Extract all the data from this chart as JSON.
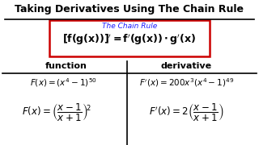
{
  "title": "Taking Derivatives Using The Chain Rule",
  "box_label": "The Chain Rule",
  "bg_color": "#ffffff",
  "title_color": "#000000",
  "box_label_color": "#1a1aff",
  "box_edge_color": "#cc0000",
  "header_color": "#000000",
  "cell_color": "#000000",
  "divider_color": "#000000",
  "col1_header": "function",
  "col2_header": "derivative"
}
